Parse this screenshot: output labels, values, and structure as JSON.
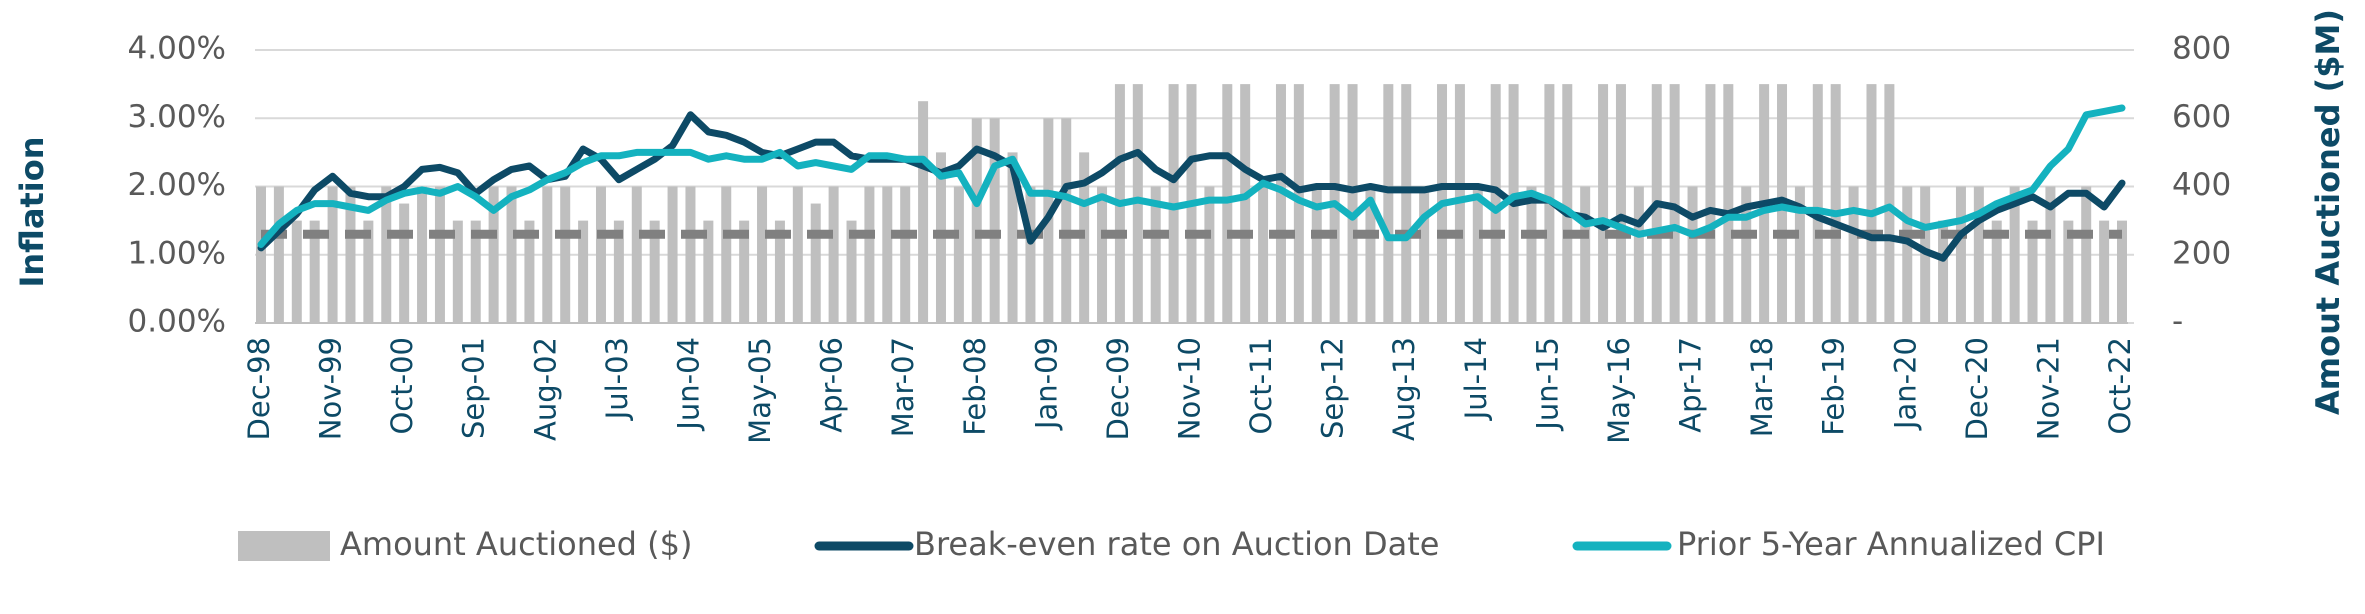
{
  "chart_data": {
    "type": "combo",
    "y_label": "Inflation",
    "y2_label": "Amout Auctioned ($M)",
    "categories": [
      "Dec-98",
      null,
      null,
      null,
      "Nov-99",
      null,
      null,
      null,
      "Oct-00",
      null,
      null,
      null,
      "Sep-01",
      null,
      null,
      null,
      "Aug-02",
      null,
      null,
      null,
      "Jul-03",
      null,
      null,
      null,
      "Jun-04",
      null,
      null,
      null,
      "May-05",
      null,
      null,
      null,
      "Apr-06",
      null,
      null,
      null,
      "Mar-07",
      null,
      null,
      null,
      "Feb-08",
      null,
      null,
      null,
      "Jan-09",
      null,
      null,
      null,
      "Dec-09",
      null,
      null,
      null,
      "Nov-10",
      null,
      null,
      null,
      "Oct-11",
      null,
      null,
      null,
      "Sep-12",
      null,
      null,
      null,
      "Aug-13",
      null,
      null,
      null,
      "Jul-14",
      null,
      null,
      null,
      "Jun-15",
      null,
      null,
      null,
      "May-16",
      null,
      null,
      null,
      "Apr-17",
      null,
      null,
      null,
      "Mar-18",
      null,
      null,
      null,
      "Feb-19",
      null,
      null,
      null,
      "Jan-20",
      null,
      null,
      null,
      "Dec-20",
      null,
      null,
      null,
      "Nov-21",
      null,
      null,
      null,
      "Oct-22"
    ],
    "series": [
      {
        "name": "Amount Auctioned ($)",
        "type": "bar",
        "axis": "y2",
        "color": "#bfbfbf",
        "values": [
          400,
          400,
          300,
          300,
          400,
          400,
          300,
          400,
          350,
          400,
          400,
          300,
          300,
          400,
          400,
          300,
          400,
          400,
          300,
          400,
          300,
          400,
          300,
          400,
          400,
          300,
          400,
          300,
          400,
          300,
          400,
          350,
          400,
          300,
          400,
          400,
          400,
          650,
          500,
          400,
          600,
          600,
          500,
          400,
          600,
          600,
          500,
          400,
          700,
          700,
          400,
          700,
          700,
          400,
          700,
          700,
          400,
          700,
          700,
          400,
          700,
          700,
          400,
          700,
          700,
          400,
          700,
          700,
          400,
          700,
          700,
          400,
          700,
          700,
          400,
          700,
          700,
          400,
          700,
          700,
          400,
          700,
          700,
          400,
          700,
          700,
          400,
          700,
          700,
          400,
          700,
          700,
          400,
          400,
          300,
          400,
          400,
          300,
          400,
          300,
          400,
          300,
          400,
          300,
          300
        ]
      },
      {
        "name": "Break-even rate on Auction Date",
        "type": "line",
        "color": "#0d4a66",
        "values": [
          1.1,
          1.35,
          1.6,
          1.95,
          2.15,
          1.9,
          1.85,
          1.85,
          2.0,
          2.25,
          2.28,
          2.2,
          1.9,
          2.1,
          2.25,
          2.3,
          2.1,
          2.15,
          2.55,
          2.4,
          2.1,
          2.25,
          2.4,
          2.6,
          3.05,
          2.8,
          2.75,
          2.65,
          2.5,
          2.45,
          2.55,
          2.65,
          2.65,
          2.45,
          2.4,
          2.4,
          2.4,
          2.3,
          2.2,
          2.3,
          2.55,
          2.45,
          2.3,
          1.2,
          1.55,
          2.0,
          2.05,
          2.2,
          2.4,
          2.5,
          2.25,
          2.1,
          2.4,
          2.45,
          2.45,
          2.25,
          2.1,
          2.15,
          1.95,
          2.0,
          2.0,
          1.95,
          2.0,
          1.95,
          1.95,
          1.95,
          2.0,
          2.0,
          2.0,
          1.95,
          1.75,
          1.8,
          1.8,
          1.6,
          1.55,
          1.4,
          1.55,
          1.45,
          1.75,
          1.7,
          1.55,
          1.65,
          1.6,
          1.7,
          1.75,
          1.8,
          1.7,
          1.55,
          1.45,
          1.35,
          1.25,
          1.25,
          1.2,
          1.05,
          0.95,
          1.3,
          1.5,
          1.65,
          1.75,
          1.85,
          1.7,
          1.9,
          1.9,
          1.7,
          2.05
        ]
      },
      {
        "name": "Prior 5-Year Annualized CPI",
        "type": "line",
        "color": "#14b2bf",
        "values": [
          1.15,
          1.45,
          1.65,
          1.75,
          1.75,
          1.7,
          1.65,
          1.8,
          1.9,
          1.95,
          1.9,
          2.0,
          1.85,
          1.65,
          1.85,
          1.95,
          2.1,
          2.2,
          2.35,
          2.45,
          2.45,
          2.5,
          2.5,
          2.5,
          2.5,
          2.4,
          2.45,
          2.4,
          2.4,
          2.5,
          2.3,
          2.35,
          2.3,
          2.25,
          2.45,
          2.45,
          2.4,
          2.4,
          2.15,
          2.2,
          1.75,
          2.3,
          2.4,
          1.9,
          1.9,
          1.85,
          1.75,
          1.85,
          1.75,
          1.8,
          1.75,
          1.7,
          1.75,
          1.8,
          1.8,
          1.85,
          2.05,
          1.95,
          1.8,
          1.7,
          1.75,
          1.55,
          1.8,
          1.25,
          1.25,
          1.55,
          1.75,
          1.8,
          1.85,
          1.65,
          1.85,
          1.9,
          1.8,
          1.65,
          1.45,
          1.5,
          1.4,
          1.3,
          1.35,
          1.4,
          1.3,
          1.4,
          1.55,
          1.55,
          1.65,
          1.7,
          1.65,
          1.65,
          1.6,
          1.65,
          1.6,
          1.7,
          1.5,
          1.4,
          1.45,
          1.5,
          1.6,
          1.75,
          1.85,
          1.95,
          2.3,
          2.55,
          3.05,
          3.1,
          3.15
        ]
      }
    ],
    "hline": {
      "value": 1.3,
      "color": "#808080"
    },
    "ylim": [
      0,
      4
    ],
    "yticks": [
      {
        "value": 0,
        "label": "0.00%"
      },
      {
        "value": 1,
        "label": "1.00%"
      },
      {
        "value": 2,
        "label": "2.00%"
      },
      {
        "value": 3,
        "label": "3.00%"
      },
      {
        "value": 4,
        "label": "4.00%"
      }
    ],
    "y2lim": [
      0,
      800
    ],
    "y2ticks": [
      {
        "value": 0,
        "label": "-"
      },
      200,
      400,
      600,
      800
    ],
    "grid": true,
    "legend": "bottom"
  }
}
